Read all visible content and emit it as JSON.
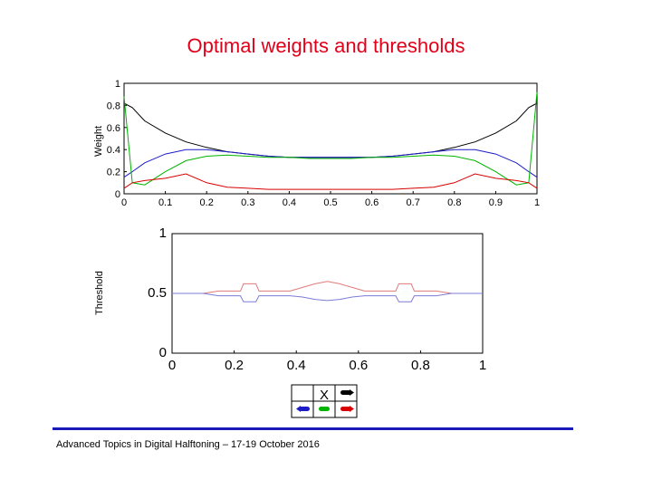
{
  "page": {
    "title": "Optimal weights and thresholds",
    "footer": "Advanced Topics in Digital Halftoning – 17-19 October 2016"
  },
  "diagram": {
    "center_label": "X"
  },
  "colors": {
    "title": "#e1001a",
    "weight_black": "#000000",
    "weight_blue": "#1c1cc8",
    "weight_green": "#00b400",
    "weight_red": "#d80000",
    "threshold_red": "#e07a7a",
    "threshold_blue": "#7c7cd8",
    "footer_rule": "#1a1ab8"
  },
  "chart_data": [
    {
      "type": "line",
      "ylabel": "Weight",
      "xlabel": "",
      "xlim": [
        0,
        1
      ],
      "ylim": [
        0,
        1
      ],
      "x_ticks": [
        "0",
        "0.1",
        "0.2",
        "0.3",
        "0.4",
        "0.5",
        "0.6",
        "0.7",
        "0.8",
        "0.9",
        "1"
      ],
      "y_ticks": [
        "0",
        "0.2",
        "0.4",
        "0.6",
        "0.8",
        "1"
      ],
      "x": [
        0,
        0.02,
        0.05,
        0.1,
        0.15,
        0.2,
        0.25,
        0.3,
        0.35,
        0.4,
        0.45,
        0.5,
        0.55,
        0.6,
        0.65,
        0.7,
        0.75,
        0.8,
        0.85,
        0.9,
        0.95,
        0.98,
        1
      ],
      "series": [
        {
          "color": "black",
          "values": [
            0.82,
            0.78,
            0.66,
            0.55,
            0.47,
            0.42,
            0.38,
            0.36,
            0.34,
            0.33,
            0.33,
            0.33,
            0.33,
            0.33,
            0.34,
            0.36,
            0.38,
            0.42,
            0.47,
            0.55,
            0.66,
            0.78,
            0.82
          ]
        },
        {
          "color": "blue",
          "values": [
            0.15,
            0.2,
            0.28,
            0.36,
            0.4,
            0.4,
            0.38,
            0.36,
            0.34,
            0.33,
            0.33,
            0.33,
            0.33,
            0.33,
            0.34,
            0.36,
            0.38,
            0.4,
            0.4,
            0.36,
            0.28,
            0.2,
            0.15
          ]
        },
        {
          "color": "green",
          "values": [
            0.88,
            0.1,
            0.08,
            0.2,
            0.3,
            0.34,
            0.35,
            0.34,
            0.33,
            0.33,
            0.32,
            0.32,
            0.32,
            0.33,
            0.33,
            0.34,
            0.35,
            0.34,
            0.3,
            0.2,
            0.08,
            0.1,
            0.92
          ]
        },
        {
          "color": "red",
          "values": [
            0.05,
            0.1,
            0.12,
            0.14,
            0.18,
            0.1,
            0.06,
            0.05,
            0.04,
            0.04,
            0.04,
            0.04,
            0.04,
            0.04,
            0.04,
            0.05,
            0.06,
            0.1,
            0.18,
            0.14,
            0.12,
            0.1,
            0.05
          ]
        }
      ]
    },
    {
      "type": "line",
      "ylabel": "Threshold",
      "xlabel": "",
      "xlim": [
        0,
        1
      ],
      "ylim": [
        0,
        1
      ],
      "x_ticks": [
        "0",
        "0.2",
        "0.4",
        "0.6",
        "0.8",
        "1"
      ],
      "y_ticks": [
        "0",
        "0.5",
        "1"
      ],
      "x": [
        0,
        0.1,
        0.15,
        0.22,
        0.23,
        0.27,
        0.28,
        0.32,
        0.38,
        0.42,
        0.46,
        0.5,
        0.54,
        0.58,
        0.62,
        0.68,
        0.72,
        0.73,
        0.77,
        0.78,
        0.85,
        0.9,
        1
      ],
      "series": [
        {
          "color": "red",
          "values": [
            0.5,
            0.5,
            0.52,
            0.52,
            0.58,
            0.58,
            0.52,
            0.52,
            0.52,
            0.55,
            0.58,
            0.6,
            0.58,
            0.55,
            0.52,
            0.52,
            0.52,
            0.58,
            0.58,
            0.52,
            0.52,
            0.5,
            0.5
          ]
        },
        {
          "color": "blue",
          "values": [
            0.5,
            0.5,
            0.48,
            0.48,
            0.43,
            0.43,
            0.48,
            0.48,
            0.48,
            0.47,
            0.45,
            0.44,
            0.45,
            0.47,
            0.48,
            0.48,
            0.48,
            0.43,
            0.43,
            0.48,
            0.48,
            0.5,
            0.5
          ]
        }
      ]
    }
  ]
}
